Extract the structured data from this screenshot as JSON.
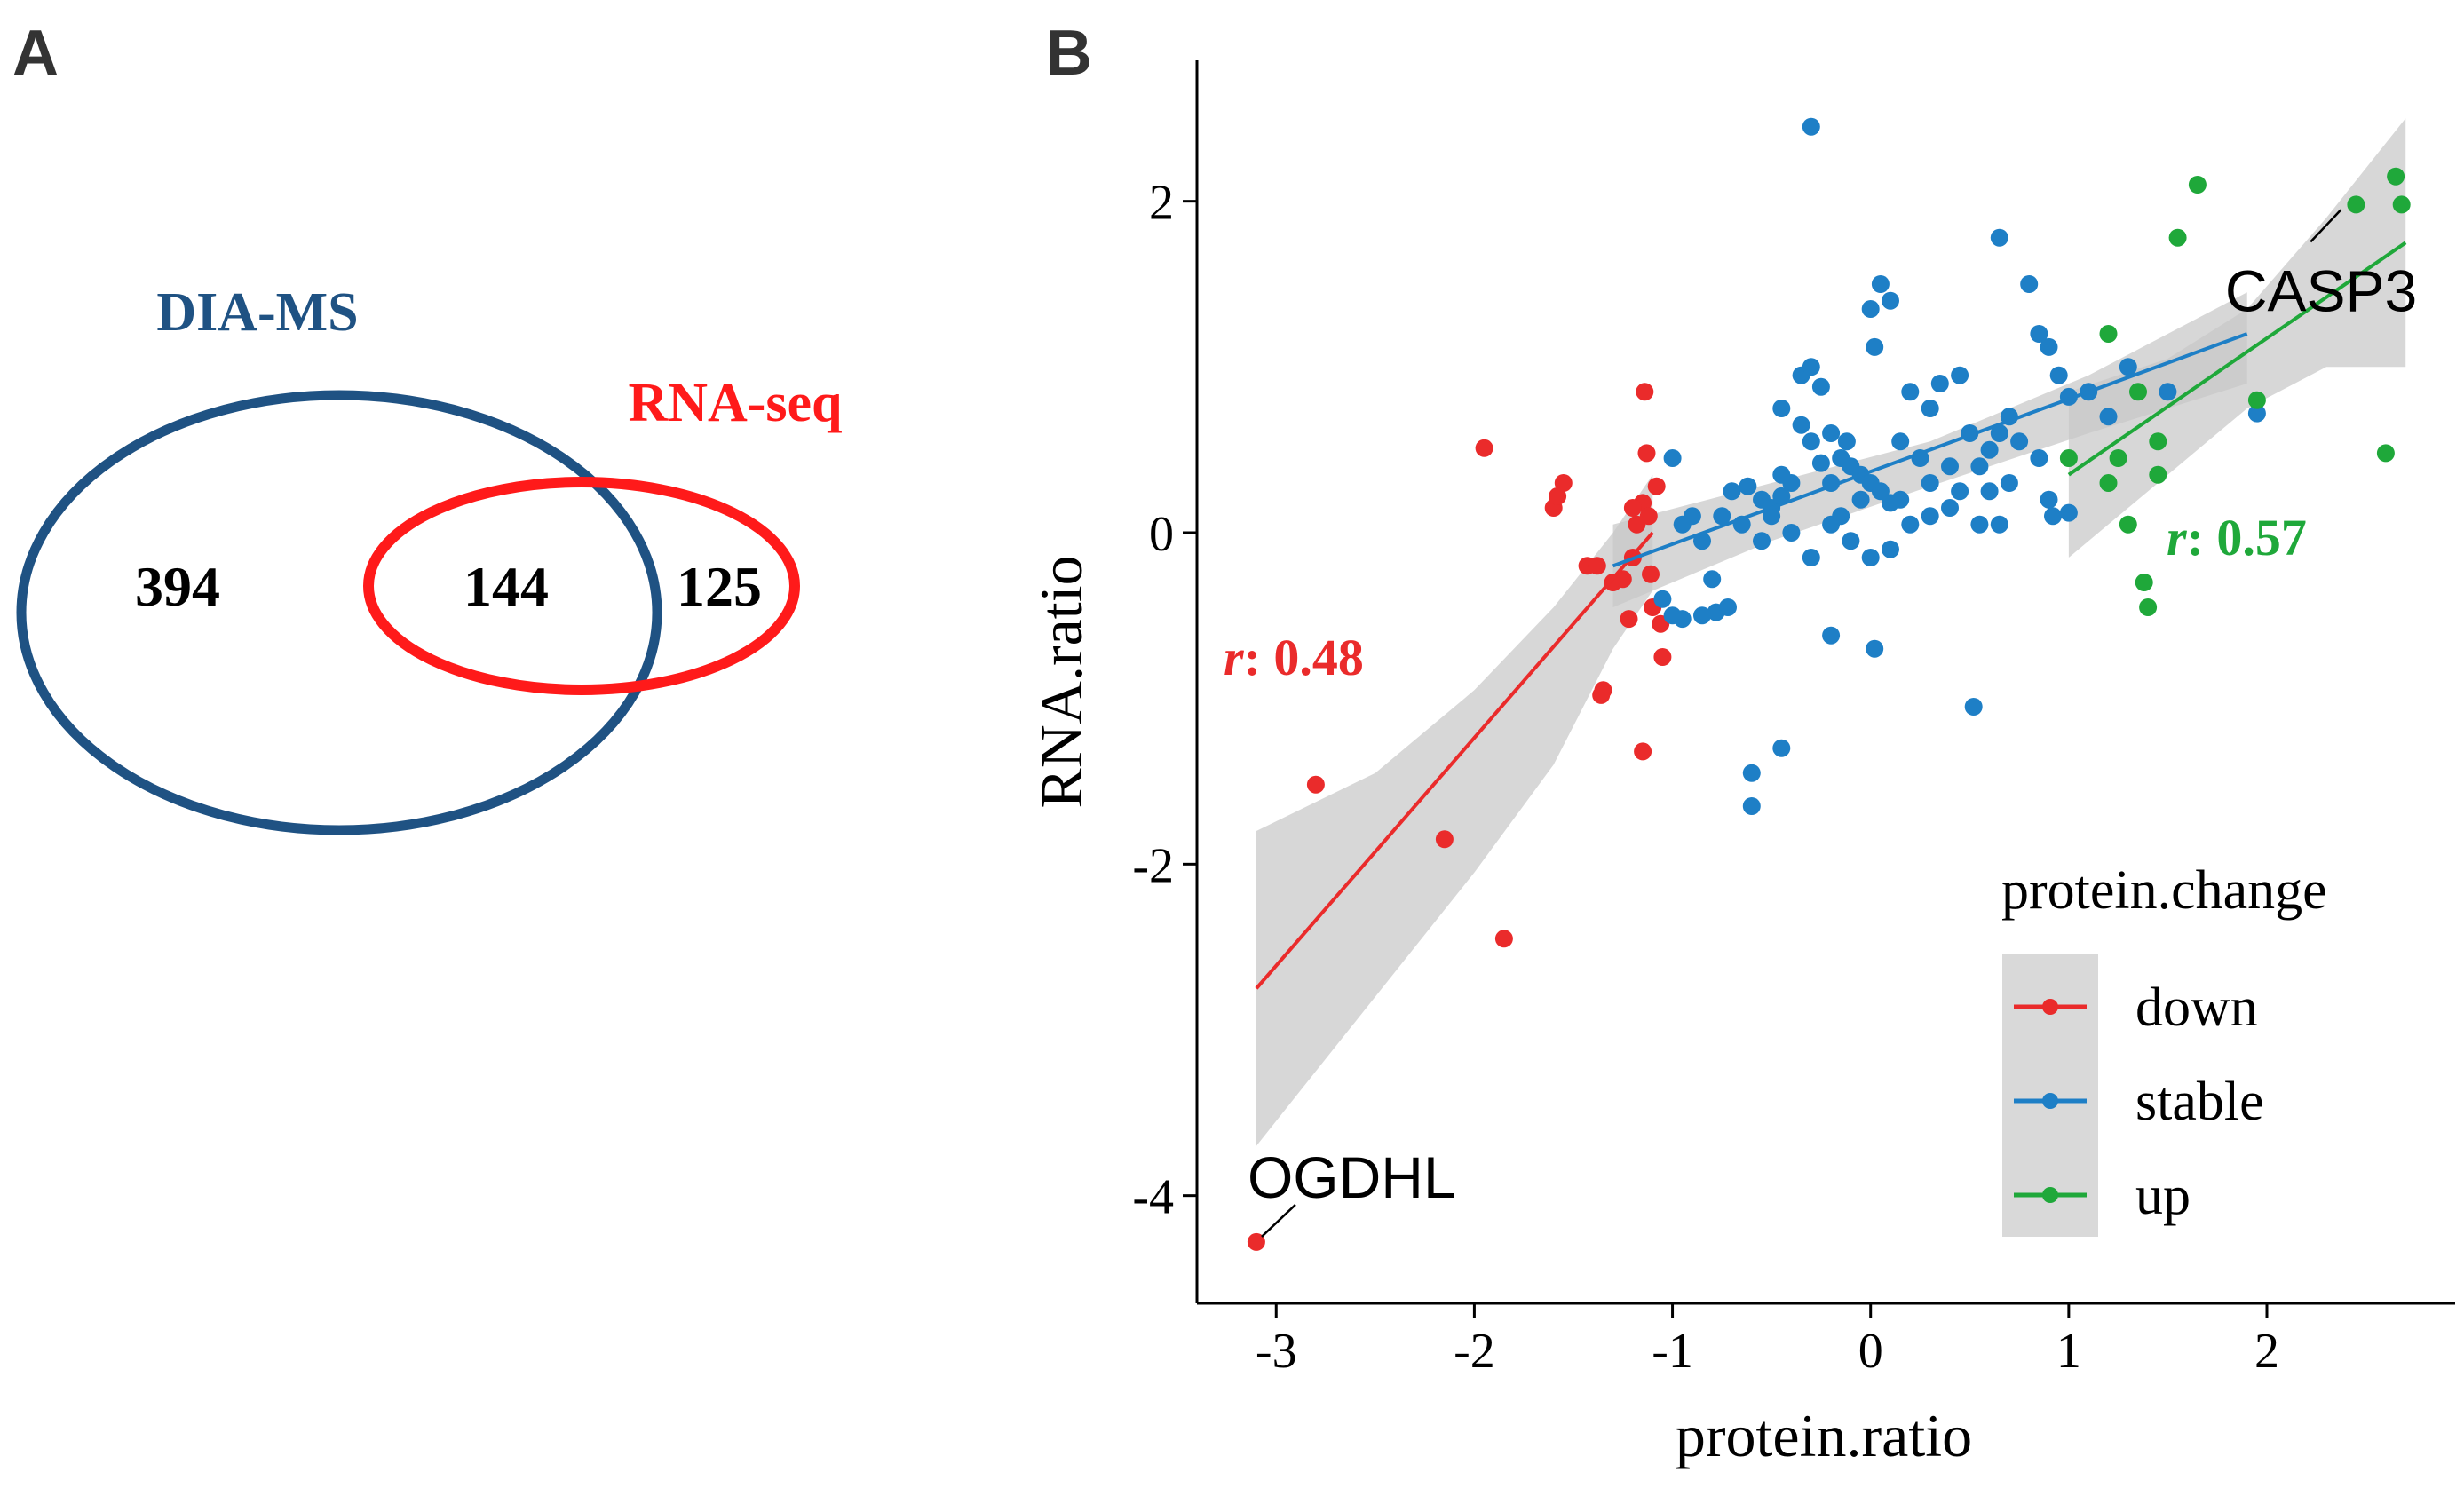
{
  "panel_a": {
    "label": "A",
    "set1": {
      "name": "DIA-MS",
      "only": "394",
      "color": "#1f5283"
    },
    "set2": {
      "name": "RNA-seq",
      "only": "125",
      "color": "#ff1a1a"
    },
    "intersection": "144"
  },
  "panel_b": {
    "label": "B"
  },
  "chart_data": {
    "type": "scatter",
    "xlabel": "protein.ratio",
    "ylabel": "RNA.ratio",
    "xlim": [
      -3.4,
      2.95
    ],
    "ylim": [
      -4.65,
      2.85
    ],
    "xticks": [
      -3,
      -2,
      -1,
      0,
      1,
      2
    ],
    "yticks": [
      -4,
      -2,
      0,
      2
    ],
    "xtick_labels": [
      "-3",
      "-2",
      "-1",
      "0",
      "1",
      "2"
    ],
    "ytick_labels": [
      "-4",
      "-2",
      "0",
      "2"
    ],
    "legend": {
      "title": "protein.change",
      "position": "bottom-right",
      "entries": [
        "down",
        "stable",
        "up"
      ]
    },
    "annotations": [
      {
        "text": "OGDHL",
        "x": -3.1,
        "y": -4.28
      },
      {
        "text": "CASP3",
        "x": 2.4,
        "y": 1.98
      }
    ],
    "correlations": [
      {
        "series": "down",
        "prefix": "r",
        "label": ": 0.48"
      },
      {
        "series": "up",
        "prefix": "r",
        "label": ": 0.57"
      }
    ],
    "series": [
      {
        "name": "down",
        "color": "#ea2b2b",
        "fit": {
          "x": [
            -3.1,
            -1.1
          ],
          "y": [
            -2.75,
            0.0
          ]
        },
        "band": {
          "x": [
            -3.1,
            -2.5,
            -2.0,
            -1.6,
            -1.3,
            -1.1
          ],
          "lower": [
            -3.7,
            -2.8,
            -2.05,
            -1.4,
            -0.7,
            -0.35
          ],
          "upper": [
            -1.8,
            -1.45,
            -0.95,
            -0.45,
            0.0,
            0.35
          ]
        },
        "points": [
          [
            -3.1,
            -4.28
          ],
          [
            -2.8,
            -1.52
          ],
          [
            -2.15,
            -1.85
          ],
          [
            -1.85,
            -2.45
          ],
          [
            -1.95,
            0.51
          ],
          [
            -1.6,
            0.15
          ],
          [
            -1.55,
            0.3
          ],
          [
            -1.58,
            0.22
          ],
          [
            -1.43,
            -0.2
          ],
          [
            -1.38,
            -0.2
          ],
          [
            -1.35,
            -0.95
          ],
          [
            -1.36,
            -0.98
          ],
          [
            -1.3,
            -0.3
          ],
          [
            -1.25,
            -0.28
          ],
          [
            -1.2,
            -0.15
          ],
          [
            -1.22,
            -0.52
          ],
          [
            -1.18,
            0.05
          ],
          [
            -1.15,
            0.18
          ],
          [
            -1.12,
            0.1
          ],
          [
            -1.1,
            -0.45
          ],
          [
            -1.14,
            0.85
          ],
          [
            -1.13,
            0.48
          ],
          [
            -1.08,
            0.28
          ],
          [
            -1.06,
            -0.55
          ],
          [
            -1.05,
            -0.75
          ],
          [
            -1.15,
            -1.32
          ],
          [
            -1.2,
            0.15
          ],
          [
            -1.11,
            -0.25
          ]
        ]
      },
      {
        "name": "stable",
        "color": "#1e7fc6",
        "fit": {
          "x": [
            -1.3,
            1.9
          ],
          "y": [
            -0.2,
            1.2
          ]
        },
        "band": {
          "x": [
            -1.3,
            -0.5,
            0.3,
            1.1,
            1.9
          ],
          "lower": [
            -0.45,
            -0.05,
            0.28,
            0.6,
            0.9
          ],
          "upper": [
            0.05,
            0.3,
            0.55,
            0.95,
            1.45
          ]
        },
        "points": [
          [
            -1.0,
            0.45
          ],
          [
            -0.95,
            0.05
          ],
          [
            -0.9,
            0.1
          ],
          [
            -0.85,
            -0.05
          ],
          [
            -1.05,
            -0.4
          ],
          [
            -1.0,
            -0.5
          ],
          [
            -0.95,
            -0.52
          ],
          [
            -0.85,
            -0.5
          ],
          [
            -0.78,
            -0.48
          ],
          [
            -0.72,
            -0.45
          ],
          [
            -0.8,
            -0.28
          ],
          [
            -0.7,
            0.25
          ],
          [
            -0.62,
            0.28
          ],
          [
            -0.55,
            0.2
          ],
          [
            -0.5,
            0.15
          ],
          [
            -0.45,
            0.22
          ],
          [
            -0.4,
            0.3
          ],
          [
            -0.35,
            0.95
          ],
          [
            -0.3,
            1.0
          ],
          [
            -0.25,
            0.88
          ],
          [
            -0.45,
            0.75
          ],
          [
            -0.35,
            0.65
          ],
          [
            -0.3,
            0.55
          ],
          [
            -0.2,
            0.6
          ],
          [
            -0.15,
            0.45
          ],
          [
            -0.1,
            0.4
          ],
          [
            -0.05,
            0.35
          ],
          [
            0.0,
            0.3
          ],
          [
            0.05,
            0.25
          ],
          [
            0.1,
            0.18
          ],
          [
            -0.25,
            0.42
          ],
          [
            -0.12,
            0.55
          ],
          [
            0.1,
            1.4
          ],
          [
            0.05,
            1.5
          ],
          [
            0.0,
            1.35
          ],
          [
            0.02,
            1.12
          ],
          [
            0.2,
            0.85
          ],
          [
            0.3,
            0.75
          ],
          [
            0.35,
            0.9
          ],
          [
            0.45,
            0.95
          ],
          [
            0.5,
            0.6
          ],
          [
            0.55,
            0.4
          ],
          [
            0.6,
            0.25
          ],
          [
            0.65,
            1.78
          ],
          [
            0.8,
            1.5
          ],
          [
            0.85,
            1.2
          ],
          [
            0.9,
            1.12
          ],
          [
            0.95,
            0.95
          ],
          [
            1.0,
            0.82
          ],
          [
            0.85,
            0.45
          ],
          [
            0.9,
            0.2
          ],
          [
            1.0,
            0.12
          ],
          [
            0.92,
            0.1
          ],
          [
            0.7,
            0.3
          ],
          [
            0.75,
            0.55
          ],
          [
            0.4,
            0.15
          ],
          [
            0.3,
            0.1
          ],
          [
            0.2,
            0.05
          ],
          [
            0.1,
            -0.1
          ],
          [
            0.0,
            -0.15
          ],
          [
            -0.1,
            -0.05
          ],
          [
            -0.2,
            0.05
          ],
          [
            -0.3,
            -0.15
          ],
          [
            -0.5,
            0.1
          ],
          [
            -0.55,
            -0.05
          ],
          [
            -0.6,
            -1.45
          ],
          [
            -0.6,
            -1.65
          ],
          [
            -0.45,
            -1.3
          ],
          [
            -0.2,
            -0.62
          ],
          [
            0.02,
            -0.7
          ],
          [
            0.52,
            -1.05
          ],
          [
            -0.3,
            2.45
          ],
          [
            0.15,
            0.55
          ],
          [
            0.25,
            0.45
          ],
          [
            0.4,
            0.4
          ],
          [
            0.6,
            0.5
          ],
          [
            0.65,
            0.6
          ],
          [
            0.7,
            0.7
          ],
          [
            0.3,
            0.3
          ],
          [
            0.45,
            0.25
          ],
          [
            0.55,
            0.05
          ],
          [
            0.65,
            0.05
          ],
          [
            0.15,
            0.2
          ],
          [
            -0.05,
            0.2
          ],
          [
            -0.15,
            0.1
          ],
          [
            -0.4,
            0.0
          ],
          [
            -0.65,
            0.05
          ],
          [
            -0.75,
            0.1
          ],
          [
            -0.45,
            0.35
          ],
          [
            -0.2,
            0.3
          ],
          [
            1.95,
            0.72
          ],
          [
            1.5,
            0.85
          ],
          [
            1.3,
            1.0
          ],
          [
            1.1,
            0.85
          ],
          [
            1.2,
            0.7
          ]
        ]
      },
      {
        "name": "up",
        "color": "#1fa83a",
        "fit": {
          "x": [
            1.0,
            2.7
          ],
          "y": [
            0.35,
            1.75
          ]
        },
        "band": {
          "x": [
            1.0,
            1.5,
            1.9,
            2.3,
            2.7
          ],
          "lower": [
            -0.15,
            0.35,
            0.75,
            1.0,
            1.0
          ],
          "upper": [
            0.85,
            1.05,
            1.35,
            1.9,
            2.5
          ]
        },
        "points": [
          [
            1.2,
            1.2
          ],
          [
            1.0,
            0.45
          ],
          [
            1.2,
            0.3
          ],
          [
            1.25,
            0.45
          ],
          [
            1.3,
            0.05
          ],
          [
            1.35,
            0.85
          ],
          [
            1.38,
            -0.3
          ],
          [
            1.4,
            -0.45
          ],
          [
            1.45,
            0.55
          ],
          [
            1.45,
            0.35
          ],
          [
            1.55,
            1.78
          ],
          [
            1.65,
            2.1
          ],
          [
            1.95,
            0.8
          ],
          [
            2.45,
            1.98
          ],
          [
            2.65,
            2.15
          ],
          [
            2.68,
            1.98
          ],
          [
            2.6,
            0.48
          ]
        ]
      }
    ]
  }
}
